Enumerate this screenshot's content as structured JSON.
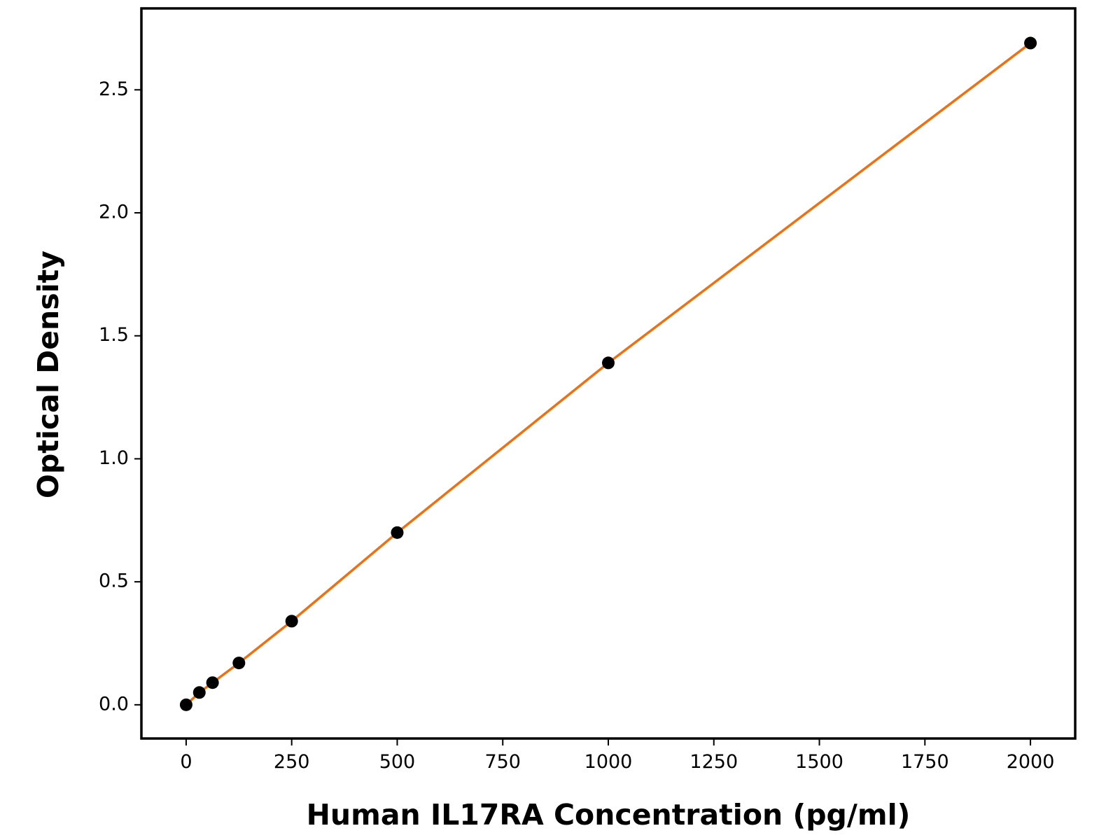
{
  "chart_data": {
    "type": "line",
    "x_label": "Human IL17RA Concentration (pg/ml)",
    "y_label": "Optical Density",
    "x": [
      0,
      31.25,
      62.5,
      125,
      250,
      500,
      1000,
      2000
    ],
    "values": [
      0.0,
      0.05,
      0.09,
      0.17,
      0.34,
      0.7,
      1.39,
      2.69
    ],
    "line_color": "#f07010",
    "marker_color": "#000000",
    "xlim": [
      -106,
      2106
    ],
    "ylim": [
      -0.137,
      2.831
    ],
    "xticks": [
      0,
      250,
      500,
      750,
      1000,
      1250,
      1500,
      1750,
      2000
    ],
    "yticks": [
      {
        "value": 0,
        "label": "0.0"
      },
      0.5,
      {
        "value": 1,
        "label": "1.0"
      },
      1.5,
      {
        "value": 2,
        "label": "2.0"
      },
      2.5
    ]
  }
}
